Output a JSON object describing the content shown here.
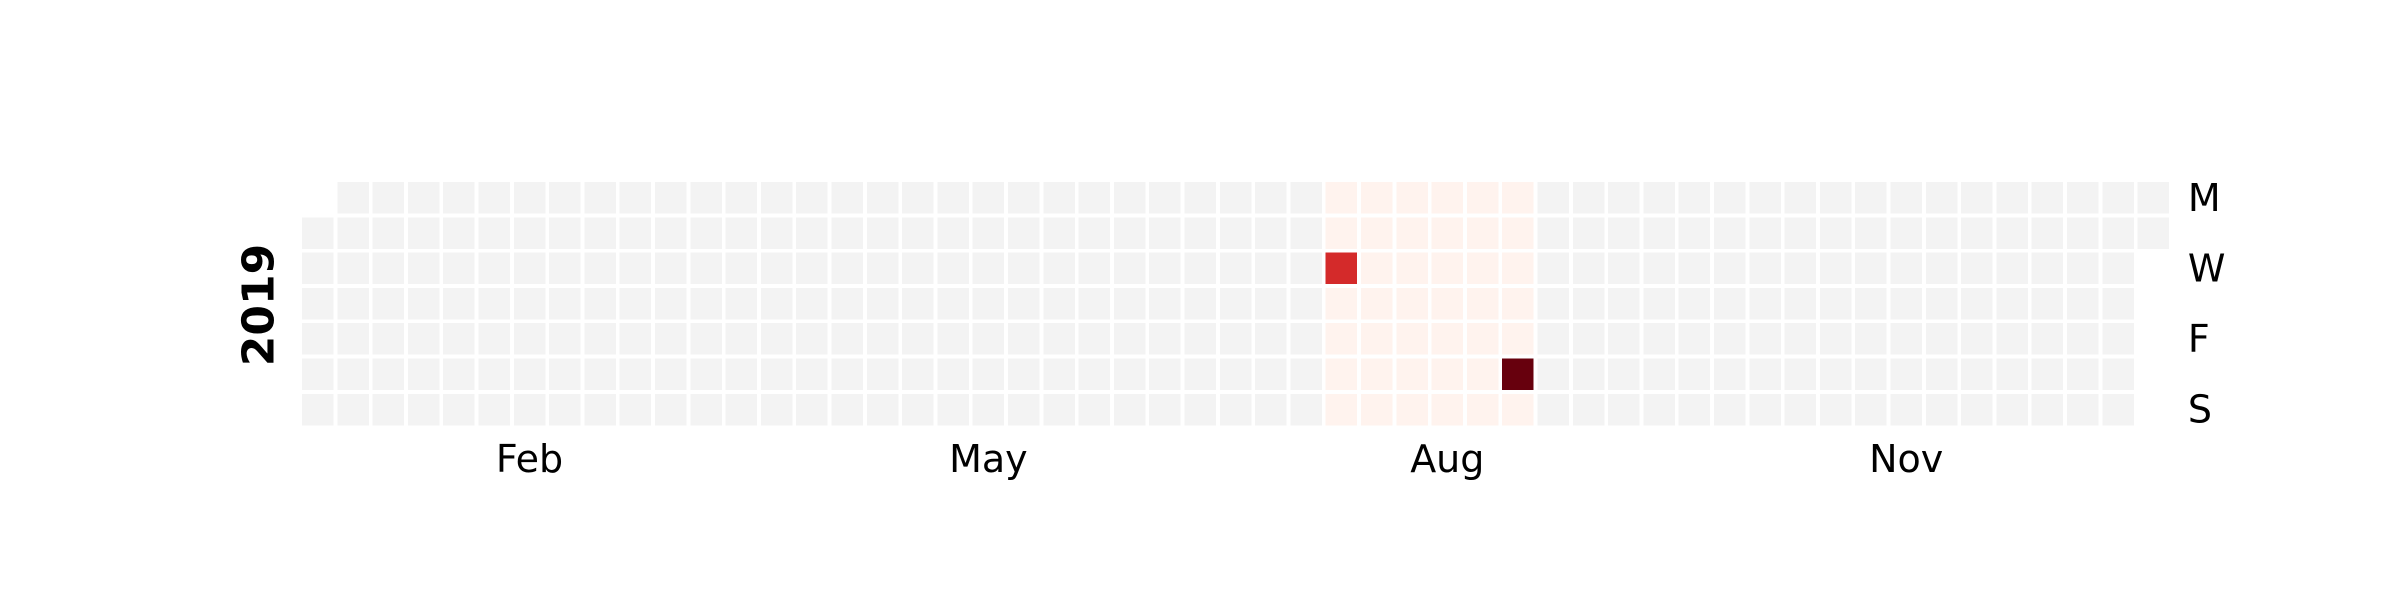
{
  "chart_data": {
    "type": "heatmap",
    "subtype": "calendar",
    "year": 2019,
    "year_label": "2019",
    "month_ticks": [
      "Feb",
      "May",
      "Aug",
      "Nov"
    ],
    "weekday_ticks": [
      "M",
      "W",
      "F",
      "S"
    ],
    "colormap": "Reds",
    "empty_color": "#f3f3f3",
    "grid_line_color": "#ffffff",
    "background_range": {
      "start": "2019-07-22",
      "end": "2019-09-01",
      "value": 0.05
    },
    "highlights": [
      {
        "date": "2019-07-24",
        "value": 0.7
      },
      {
        "date": "2019-08-31",
        "value": 1.0
      }
    ],
    "colors": {
      "low": "#fff3ee",
      "mid": "#d42a2a",
      "high": "#67000d"
    },
    "grid": false,
    "legend": "none"
  }
}
